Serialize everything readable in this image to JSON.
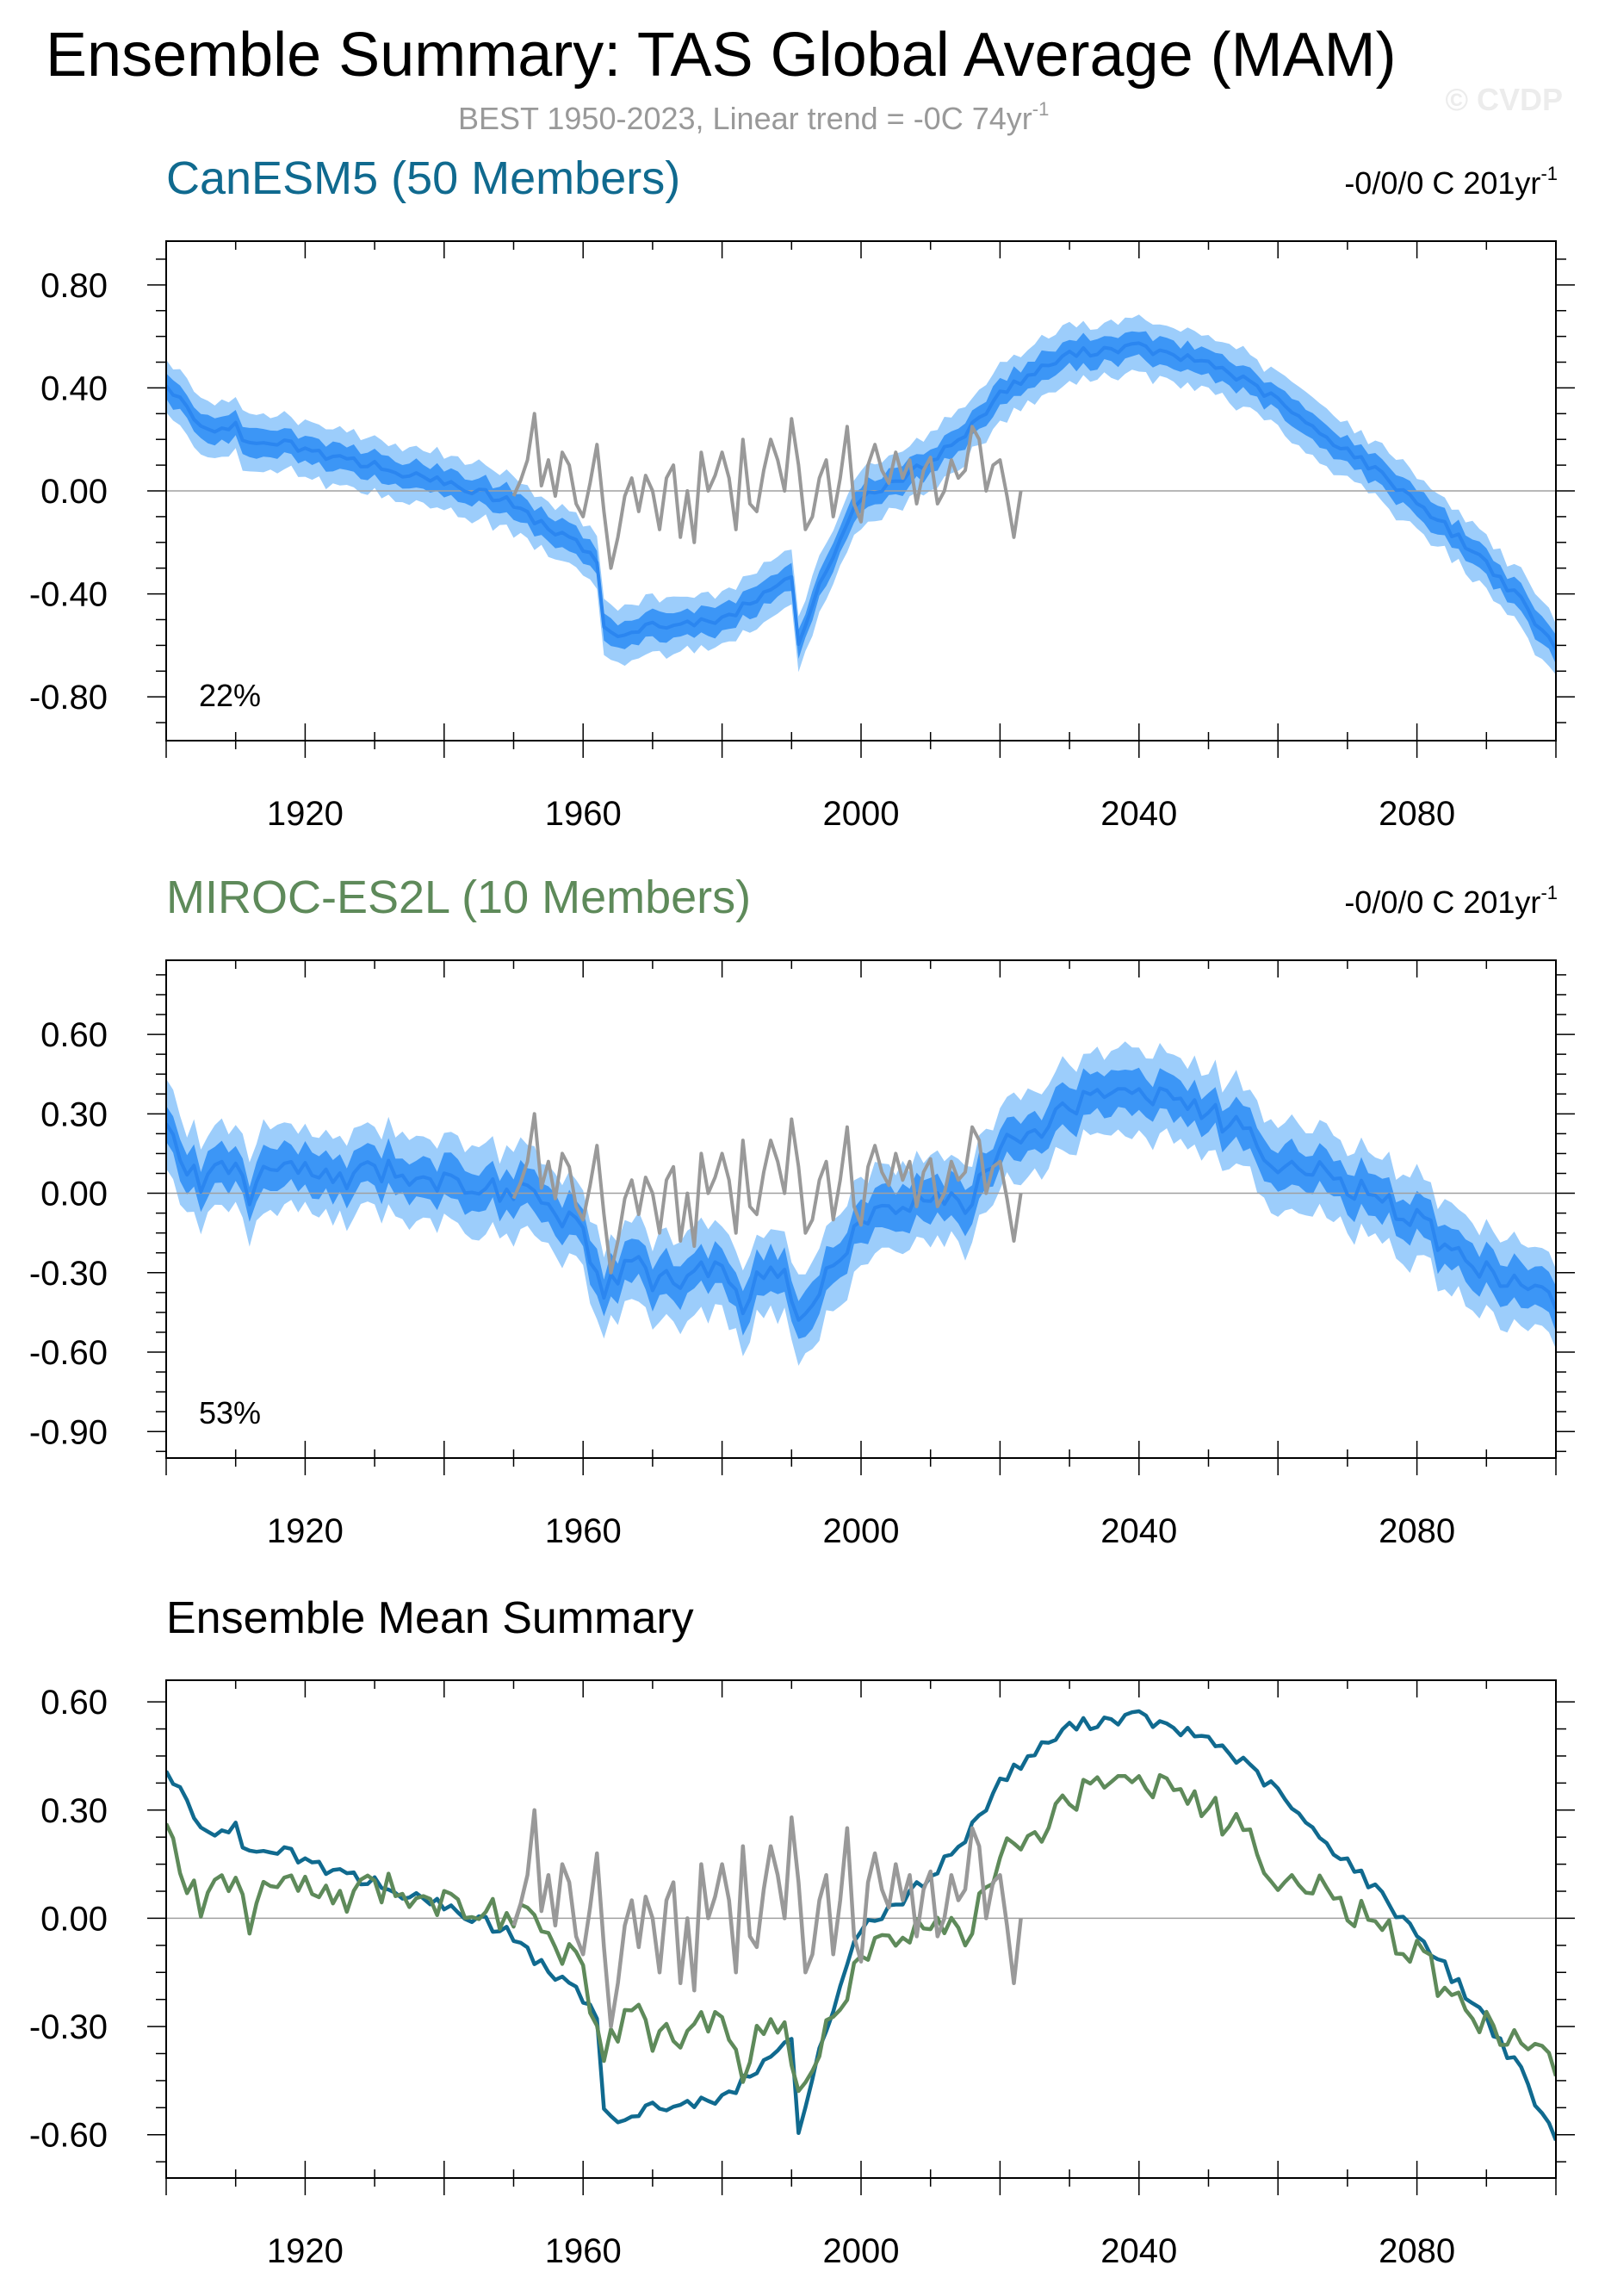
{
  "title": "Ensemble Summary: TAS Global Average (MAM)",
  "subtitle": "BEST 1950-2023, Linear trend = -0C 74yr",
  "subtitle_sup": "-1",
  "watermark": "© CVDP",
  "colors": {
    "canesm5": "#106a8f",
    "miroc": "#5e8a5a",
    "obs": "#999999",
    "mean_line": "#2b86f0",
    "inner_band": "#3c96f6",
    "outer_band": "#9ccdfb",
    "zero_line": "#a0a0a0"
  },
  "chart_data": [
    {
      "type": "area",
      "title": "CanESM5 (50 Members)",
      "trend_label": "-0/0/0 C 201yr",
      "trend_sup": "-1",
      "percent_label": "22%",
      "xlim": [
        1900,
        2100
      ],
      "ylim": [
        -0.97,
        0.97
      ],
      "x_ticks": [
        1920,
        1960,
        2000,
        2040,
        2080
      ],
      "x_tick_labels": [
        "1920",
        "1960",
        "2000",
        "2040",
        "2080"
      ],
      "y_ticks": [
        0.8,
        0.4,
        0.0,
        -0.4,
        -0.8
      ],
      "y_tick_labels": [
        "0.80",
        "0.40",
        "0.00",
        "-0.40",
        "-0.80"
      ],
      "years": [
        1900,
        1905,
        1910,
        1911,
        1915,
        1920,
        1925,
        1930,
        1935,
        1940,
        1945,
        1950,
        1955,
        1960,
        1962,
        1963,
        1965,
        1970,
        1975,
        1980,
        1985,
        1990,
        1991,
        1993,
        1995,
        2000,
        2005,
        2010,
        2015,
        2020,
        2025,
        2030,
        2035,
        2040,
        2045,
        2050,
        2055,
        2060,
        2065,
        2070,
        2075,
        2080,
        2085,
        2090,
        2095,
        2100
      ],
      "mean": [
        0.42,
        0.24,
        0.25,
        0.18,
        0.2,
        0.16,
        0.12,
        0.1,
        0.06,
        0.03,
        0.0,
        -0.05,
        -0.15,
        -0.22,
        -0.28,
        -0.52,
        -0.55,
        -0.52,
        -0.52,
        -0.5,
        -0.42,
        -0.33,
        -0.58,
        -0.45,
        -0.3,
        -0.02,
        0.03,
        0.12,
        0.22,
        0.38,
        0.46,
        0.53,
        0.55,
        0.56,
        0.52,
        0.5,
        0.43,
        0.35,
        0.24,
        0.16,
        0.06,
        -0.04,
        -0.16,
        -0.28,
        -0.43,
        -0.62
      ],
      "inner_halfwidth": 0.06,
      "outer_halfwidth": 0.12,
      "obs_years": [
        1950,
        1951,
        1952,
        1953,
        1954,
        1955,
        1956,
        1957,
        1958,
        1959,
        1960,
        1961,
        1962,
        1963,
        1964,
        1965,
        1966,
        1967,
        1968,
        1969,
        1970,
        1971,
        1972,
        1973,
        1974,
        1975,
        1976,
        1977,
        1978,
        1979,
        1980,
        1981,
        1982,
        1983,
        1984,
        1985,
        1986,
        1987,
        1988,
        1989,
        1990,
        1991,
        1992,
        1993,
        1994,
        1995,
        1996,
        1997,
        1998,
        1999,
        2000,
        2001,
        2002,
        2003,
        2004,
        2005,
        2006,
        2007,
        2008,
        2009,
        2010,
        2011,
        2012,
        2013,
        2014,
        2015,
        2016,
        2017,
        2018,
        2019,
        2020,
        2021,
        2022,
        2023
      ],
      "obs": [
        -0.02,
        0.04,
        0.12,
        0.3,
        0.02,
        0.12,
        -0.02,
        0.15,
        0.1,
        -0.05,
        -0.1,
        0.03,
        0.18,
        -0.08,
        -0.3,
        -0.18,
        -0.02,
        0.05,
        -0.08,
        0.06,
        0.0,
        -0.15,
        0.05,
        0.1,
        -0.18,
        0.0,
        -0.2,
        0.15,
        0.0,
        0.06,
        0.15,
        0.05,
        -0.15,
        0.2,
        -0.05,
        -0.08,
        0.08,
        0.2,
        0.12,
        0.0,
        0.28,
        0.1,
        -0.15,
        -0.1,
        0.05,
        0.12,
        -0.1,
        0.05,
        0.25,
        -0.05,
        -0.12,
        0.1,
        0.18,
        0.08,
        0.03,
        0.15,
        0.05,
        0.12,
        -0.05,
        0.08,
        0.13,
        -0.05,
        0.0,
        0.12,
        0.05,
        0.08,
        0.25,
        0.2,
        0.0,
        0.1,
        0.12,
        -0.02,
        -0.18,
        0.0
      ]
    },
    {
      "type": "area",
      "title": "MIROC-ES2L (10 Members)",
      "trend_label": "-0/0/0 C 201yr",
      "trend_sup": "-1",
      "percent_label": "53%",
      "xlim": [
        1900,
        2100
      ],
      "ylim": [
        -1.0,
        0.88
      ],
      "x_ticks": [
        1920,
        1960,
        2000,
        2040,
        2080
      ],
      "x_tick_labels": [
        "1920",
        "1960",
        "2000",
        "2040",
        "2080"
      ],
      "y_ticks": [
        0.6,
        0.3,
        0.0,
        -0.3,
        -0.6,
        -0.9
      ],
      "y_tick_labels": [
        "0.60",
        "0.30",
        "0.00",
        "-0.30",
        "-0.60",
        "-0.90"
      ],
      "years": [
        1900,
        1903,
        1905,
        1908,
        1910,
        1912,
        1915,
        1920,
        1925,
        1930,
        1935,
        1940,
        1945,
        1950,
        1955,
        1960,
        1963,
        1965,
        1968,
        1970,
        1975,
        1980,
        1983,
        1985,
        1988,
        1990,
        1992,
        1995,
        2000,
        2005,
        2010,
        2015,
        2020,
        2022,
        2025,
        2030,
        2035,
        2040,
        2045,
        2050,
        2055,
        2060,
        2065,
        2070,
        2075,
        2080,
        2085,
        2090,
        2095,
        2100
      ],
      "mean": [
        0.25,
        0.08,
        0.05,
        0.12,
        0.08,
        -0.02,
        0.12,
        0.08,
        0.06,
        0.1,
        0.06,
        0.04,
        0.03,
        0.0,
        -0.05,
        -0.12,
        -0.4,
        -0.3,
        -0.25,
        -0.35,
        -0.3,
        -0.28,
        -0.45,
        -0.32,
        -0.28,
        -0.38,
        -0.5,
        -0.28,
        -0.12,
        -0.03,
        -0.02,
        -0.04,
        0.12,
        0.25,
        0.22,
        0.33,
        0.38,
        0.4,
        0.35,
        0.3,
        0.25,
        0.12,
        0.08,
        0.03,
        -0.02,
        -0.1,
        -0.22,
        -0.3,
        -0.34,
        -0.42
      ],
      "inner_halfwidth": 0.09,
      "outer_halfwidth": 0.18,
      "obs_years": [
        1950,
        1951,
        1952,
        1953,
        1954,
        1955,
        1956,
        1957,
        1958,
        1959,
        1960,
        1961,
        1962,
        1963,
        1964,
        1965,
        1966,
        1967,
        1968,
        1969,
        1970,
        1971,
        1972,
        1973,
        1974,
        1975,
        1976,
        1977,
        1978,
        1979,
        1980,
        1981,
        1982,
        1983,
        1984,
        1985,
        1986,
        1987,
        1988,
        1989,
        1990,
        1991,
        1992,
        1993,
        1994,
        1995,
        1996,
        1997,
        1998,
        1999,
        2000,
        2001,
        2002,
        2003,
        2004,
        2005,
        2006,
        2007,
        2008,
        2009,
        2010,
        2011,
        2012,
        2013,
        2014,
        2015,
        2016,
        2017,
        2018,
        2019,
        2020,
        2021,
        2022,
        2023
      ],
      "obs": [
        -0.02,
        0.04,
        0.12,
        0.3,
        0.02,
        0.12,
        -0.02,
        0.15,
        0.1,
        -0.05,
        -0.1,
        0.03,
        0.18,
        -0.08,
        -0.3,
        -0.18,
        -0.02,
        0.05,
        -0.08,
        0.06,
        0.0,
        -0.15,
        0.05,
        0.1,
        -0.18,
        0.0,
        -0.2,
        0.15,
        0.0,
        0.06,
        0.15,
        0.05,
        -0.15,
        0.2,
        -0.05,
        -0.08,
        0.08,
        0.2,
        0.12,
        0.0,
        0.28,
        0.1,
        -0.15,
        -0.1,
        0.05,
        0.12,
        -0.1,
        0.05,
        0.25,
        -0.05,
        -0.12,
        0.1,
        0.18,
        0.08,
        0.03,
        0.15,
        0.05,
        0.12,
        -0.05,
        0.08,
        0.13,
        -0.05,
        0.0,
        0.12,
        0.05,
        0.08,
        0.25,
        0.2,
        0.0,
        0.1,
        0.12,
        -0.02,
        -0.18,
        0.0
      ]
    },
    {
      "type": "line",
      "title": "Ensemble Mean Summary",
      "xlim": [
        1900,
        2100
      ],
      "ylim": [
        -0.72,
        0.66
      ],
      "x_ticks": [
        1920,
        1960,
        2000,
        2040,
        2080
      ],
      "x_tick_labels": [
        "1920",
        "1960",
        "2000",
        "2040",
        "2080"
      ],
      "y_ticks": [
        0.6,
        0.3,
        0.0,
        -0.3,
        -0.6
      ],
      "y_tick_labels": [
        "0.60",
        "0.30",
        "0.00",
        "-0.30",
        "-0.60"
      ],
      "series": [
        {
          "key": "canesm5",
          "years": [
            1900,
            1905,
            1910,
            1911,
            1915,
            1920,
            1925,
            1930,
            1935,
            1940,
            1945,
            1950,
            1955,
            1960,
            1962,
            1963,
            1965,
            1970,
            1975,
            1980,
            1985,
            1990,
            1991,
            1993,
            1995,
            2000,
            2005,
            2010,
            2015,
            2020,
            2025,
            2030,
            2035,
            2040,
            2045,
            2050,
            2055,
            2060,
            2065,
            2070,
            2075,
            2080,
            2085,
            2090,
            2095,
            2100
          ],
          "values": [
            0.42,
            0.24,
            0.25,
            0.18,
            0.2,
            0.16,
            0.12,
            0.1,
            0.06,
            0.03,
            0.0,
            -0.05,
            -0.15,
            -0.22,
            -0.28,
            -0.52,
            -0.55,
            -0.52,
            -0.52,
            -0.5,
            -0.42,
            -0.33,
            -0.58,
            -0.45,
            -0.3,
            -0.02,
            0.03,
            0.12,
            0.22,
            0.38,
            0.46,
            0.53,
            0.55,
            0.56,
            0.52,
            0.5,
            0.43,
            0.35,
            0.24,
            0.16,
            0.06,
            -0.04,
            -0.16,
            -0.28,
            -0.43,
            -0.62
          ]
        },
        {
          "key": "miroc",
          "years": [
            1900,
            1903,
            1905,
            1908,
            1910,
            1912,
            1915,
            1920,
            1925,
            1930,
            1935,
            1940,
            1945,
            1950,
            1955,
            1960,
            1963,
            1965,
            1968,
            1970,
            1975,
            1980,
            1983,
            1985,
            1988,
            1990,
            1992,
            1995,
            2000,
            2005,
            2010,
            2015,
            2020,
            2022,
            2025,
            2030,
            2035,
            2040,
            2045,
            2050,
            2055,
            2060,
            2065,
            2070,
            2075,
            2080,
            2085,
            2090,
            2095,
            2100
          ],
          "values": [
            0.25,
            0.08,
            0.05,
            0.12,
            0.08,
            -0.02,
            0.12,
            0.08,
            0.06,
            0.1,
            0.06,
            0.04,
            0.03,
            0.0,
            -0.05,
            -0.12,
            -0.4,
            -0.3,
            -0.25,
            -0.35,
            -0.3,
            -0.28,
            -0.45,
            -0.32,
            -0.28,
            -0.38,
            -0.5,
            -0.28,
            -0.12,
            -0.03,
            -0.02,
            -0.04,
            0.12,
            0.25,
            0.22,
            0.33,
            0.38,
            0.4,
            0.35,
            0.3,
            0.25,
            0.12,
            0.08,
            0.03,
            -0.02,
            -0.1,
            -0.22,
            -0.3,
            -0.34,
            -0.42
          ]
        },
        {
          "key": "obs",
          "years": [
            1950,
            1951,
            1952,
            1953,
            1954,
            1955,
            1956,
            1957,
            1958,
            1959,
            1960,
            1961,
            1962,
            1963,
            1964,
            1965,
            1966,
            1967,
            1968,
            1969,
            1970,
            1971,
            1972,
            1973,
            1974,
            1975,
            1976,
            1977,
            1978,
            1979,
            1980,
            1981,
            1982,
            1983,
            1984,
            1985,
            1986,
            1987,
            1988,
            1989,
            1990,
            1991,
            1992,
            1993,
            1994,
            1995,
            1996,
            1997,
            1998,
            1999,
            2000,
            2001,
            2002,
            2003,
            2004,
            2005,
            2006,
            2007,
            2008,
            2009,
            2010,
            2011,
            2012,
            2013,
            2014,
            2015,
            2016,
            2017,
            2018,
            2019,
            2020,
            2021,
            2022,
            2023
          ],
          "values": [
            -0.02,
            0.04,
            0.12,
            0.3,
            0.02,
            0.12,
            -0.02,
            0.15,
            0.1,
            -0.05,
            -0.1,
            0.03,
            0.18,
            -0.08,
            -0.3,
            -0.18,
            -0.02,
            0.05,
            -0.08,
            0.06,
            0.0,
            -0.15,
            0.05,
            0.1,
            -0.18,
            0.0,
            -0.2,
            0.15,
            0.0,
            0.06,
            0.15,
            0.05,
            -0.15,
            0.2,
            -0.05,
            -0.08,
            0.08,
            0.2,
            0.12,
            0.0,
            0.28,
            0.1,
            -0.15,
            -0.1,
            0.05,
            0.12,
            -0.1,
            0.05,
            0.25,
            -0.05,
            -0.12,
            0.1,
            0.18,
            0.08,
            0.03,
            0.15,
            0.05,
            0.12,
            -0.05,
            0.08,
            0.13,
            -0.05,
            0.0,
            0.12,
            0.05,
            0.08,
            0.25,
            0.2,
            0.0,
            0.1,
            0.12,
            -0.02,
            -0.18,
            0.0
          ]
        }
      ]
    }
  ]
}
